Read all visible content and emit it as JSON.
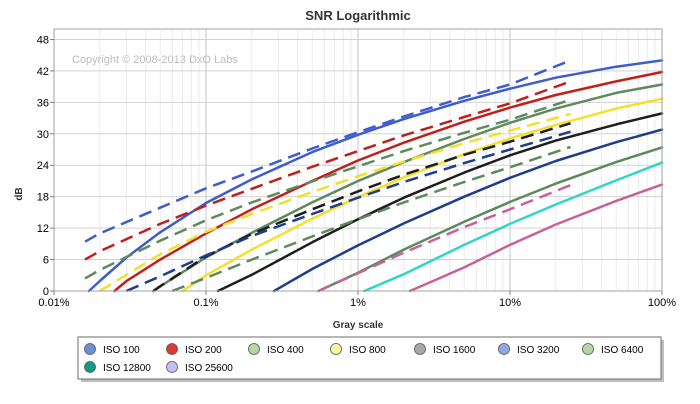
{
  "chart_data": {
    "type": "line",
    "title": "SNR Logarithmic",
    "xlabel": "Gray scale",
    "ylabel": "dB",
    "x_scale": "log",
    "xlim": [
      0.01,
      100
    ],
    "ylim": [
      0,
      50
    ],
    "x_ticks": [
      0.01,
      0.1,
      1,
      10,
      100
    ],
    "x_tick_labels": [
      "0.01%",
      "0.1%",
      "1%",
      "10%",
      "100%"
    ],
    "y_ticks": [
      0,
      6,
      12,
      18,
      24,
      30,
      36,
      42,
      48
    ],
    "y_tick_labels": [
      "0",
      "6",
      "12",
      "18",
      "24",
      "30",
      "36",
      "42",
      "48"
    ],
    "grid": true,
    "copyright": "Copyright © 2008-2013 DxO Labs",
    "series": [
      {
        "name": "ISO 100",
        "color": "#3f5ccc",
        "legend_fill": "#6f8fd8",
        "solid": {
          "x": [
            0.017,
            0.02,
            0.03,
            0.05,
            0.1,
            0.2,
            0.5,
            1,
            2,
            5,
            10,
            20,
            50,
            100
          ],
          "y": [
            0,
            1.9,
            6.4,
            11.2,
            16.8,
            21.3,
            26.5,
            29.8,
            32.8,
            36.3,
            38.6,
            40.7,
            42.8,
            44.0
          ]
        },
        "dashed": {
          "x": [
            0.016,
            0.02,
            0.05,
            0.1,
            0.2,
            0.5,
            1,
            2,
            5,
            10,
            25
          ],
          "y": [
            9.4,
            11.0,
            15.9,
            19.6,
            22.8,
            27.2,
            30.3,
            33.3,
            37.0,
            39.4,
            44.0
          ]
        }
      },
      {
        "name": "ISO 200",
        "color": "#c0201c",
        "legend_fill": "#dd3a34",
        "solid": {
          "x": [
            0.025,
            0.03,
            0.05,
            0.1,
            0.2,
            0.5,
            1,
            2,
            5,
            10,
            20,
            50,
            100
          ],
          "y": [
            0,
            1.9,
            6.0,
            11.0,
            15.6,
            21.0,
            24.9,
            28.3,
            32.3,
            35.0,
            37.4,
            40.0,
            41.8
          ]
        },
        "dashed": {
          "x": [
            0.016,
            0.02,
            0.05,
            0.1,
            0.2,
            0.5,
            1,
            2,
            5,
            10,
            25
          ],
          "y": [
            6.0,
            7.6,
            12.8,
            16.3,
            19.5,
            23.7,
            26.7,
            29.7,
            33.2,
            35.8,
            40.0
          ]
        }
      },
      {
        "name": "ISO 400",
        "color": "#5e8a5e",
        "legend_fill": "#b6d6a6",
        "solid": {
          "x": [
            0.045,
            0.05,
            0.1,
            0.2,
            0.5,
            1,
            2,
            5,
            10,
            20,
            50,
            100
          ],
          "y": [
            0,
            0.9,
            6.4,
            11.1,
            16.9,
            21.0,
            24.6,
            29.0,
            32.1,
            34.8,
            37.8,
            39.4
          ]
        },
        "dashed": {
          "x": [
            0.016,
            0.02,
            0.05,
            0.1,
            0.2,
            0.5,
            1,
            2,
            5,
            10,
            25
          ],
          "y": [
            2.4,
            4.0,
            9.6,
            13.5,
            16.9,
            20.9,
            23.8,
            26.7,
            30.2,
            32.7,
            36.5
          ]
        }
      },
      {
        "name": "ISO 800",
        "color": "#f4e02a",
        "legend_fill": "#fbf7a0",
        "solid": {
          "x": [
            0.07,
            0.1,
            0.2,
            0.5,
            1,
            2,
            5,
            10,
            20,
            50,
            100
          ],
          "y": [
            0,
            3.0,
            7.9,
            13.8,
            17.9,
            21.7,
            26.1,
            29.1,
            31.7,
            34.8,
            36.7
          ]
        },
        "dashed": {
          "x": [
            0.02,
            0.05,
            0.1,
            0.2,
            0.5,
            1,
            2,
            5,
            10,
            25
          ],
          "y": [
            0,
            7.0,
            11.3,
            14.7,
            18.9,
            21.9,
            24.7,
            28.2,
            30.6,
            33.8
          ]
        }
      },
      {
        "name": "ISO 1600",
        "color": "#1e1e1e",
        "legend_fill": "#a8a8a8",
        "solid": {
          "x": [
            0.12,
            0.2,
            0.5,
            1,
            2,
            5,
            10,
            20,
            50,
            100
          ],
          "y": [
            0,
            3.1,
            9.3,
            13.7,
            17.8,
            22.6,
            25.9,
            28.7,
            31.8,
            33.9
          ]
        },
        "dashed": {
          "x": [
            0.045,
            0.05,
            0.1,
            0.2,
            0.5,
            1,
            2,
            5,
            10,
            25
          ],
          "y": [
            0,
            0.9,
            6.6,
            10.9,
            15.6,
            19.0,
            22.2,
            26.0,
            28.5,
            32.0
          ]
        }
      },
      {
        "name": "ISO 3200",
        "color": "#1f3d8a",
        "legend_fill": "#90a8e4",
        "solid": {
          "x": [
            0.28,
            0.3,
            0.5,
            1,
            2,
            5,
            10,
            20,
            50,
            100
          ],
          "y": [
            0,
            0.5,
            4.2,
            8.7,
            12.9,
            18.0,
            21.6,
            24.8,
            28.4,
            30.8
          ]
        },
        "dashed": {
          "x": [
            0.03,
            0.05,
            0.1,
            0.2,
            0.5,
            1,
            2,
            5,
            10,
            25
          ],
          "y": [
            0,
            2.8,
            6.8,
            10.5,
            14.7,
            17.8,
            20.8,
            24.4,
            27.0,
            30.4
          ]
        }
      },
      {
        "name": "ISO 6400",
        "color": "#5b8a5b",
        "legend_fill": "#b6d6a6",
        "solid": {
          "x": [
            0.55,
            1,
            2,
            5,
            10,
            20,
            50,
            100
          ],
          "y": [
            0,
            3.5,
            7.9,
            13.2,
            17.0,
            20.5,
            24.6,
            27.4
          ]
        },
        "dashed": {
          "x": [
            0.06,
            0.1,
            0.2,
            0.5,
            1,
            2,
            5,
            10,
            25
          ],
          "y": [
            0,
            2.5,
            6.0,
            10.4,
            13.7,
            16.9,
            20.8,
            23.6,
            27.5
          ]
        }
      },
      {
        "name": "ISO 12800",
        "color": "#2fd6c6",
        "legend_fill": "#119a86",
        "solid": {
          "x": [
            1.1,
            2,
            5,
            10,
            20,
            50,
            100
          ],
          "y": [
            0,
            3.2,
            8.8,
            12.8,
            16.5,
            21.1,
            24.5
          ]
        },
        "dashed": null
      },
      {
        "name": "ISO 25600",
        "color": "#c8609a",
        "legend_fill": "#c6bff0",
        "solid": {
          "x": [
            2.2,
            3,
            5,
            10,
            20,
            50,
            100
          ],
          "y": [
            0,
            1.7,
            4.5,
            8.8,
            12.7,
            17.2,
            20.3
          ]
        },
        "dashed": {
          "x": [
            0.55,
            0.6,
            1,
            2,
            5,
            10,
            25
          ],
          "y": [
            0,
            0.5,
            3.4,
            7.3,
            12.2,
            15.6,
            20.2
          ]
        }
      }
    ]
  }
}
